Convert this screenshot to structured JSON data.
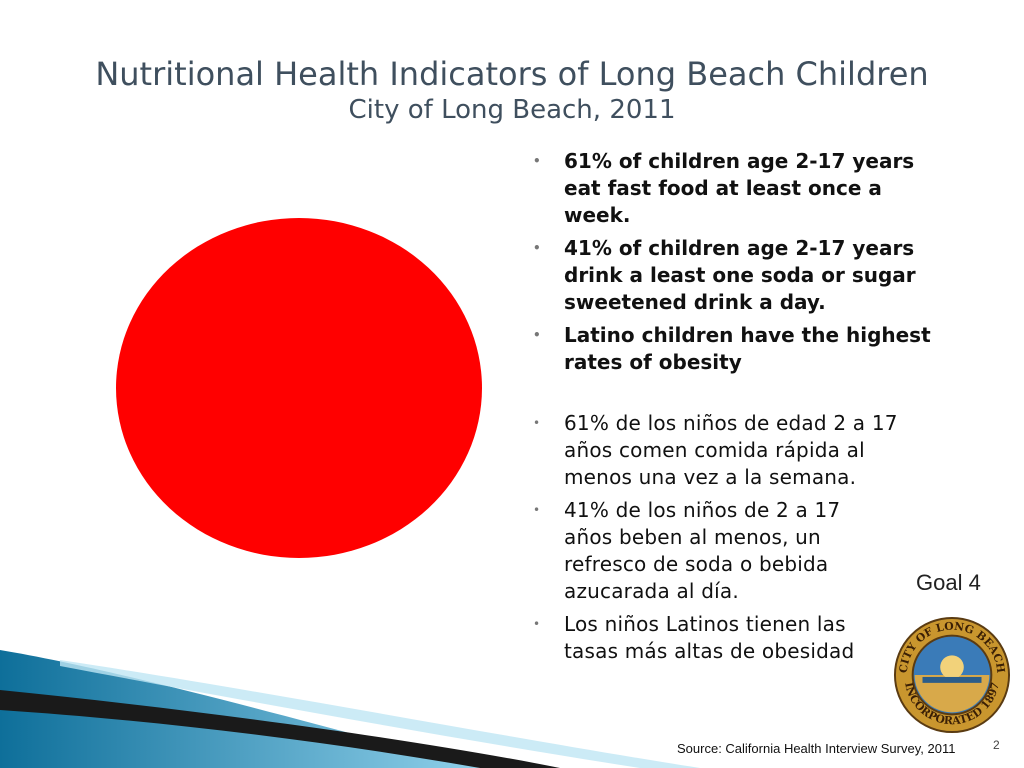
{
  "slide": {
    "title": "Nutritional Health Indicators of Long Beach Children",
    "subtitle": "City of Long Beach, 2011",
    "page_number": "2",
    "goal_label": "Goal 4",
    "source": "Source: California Health Interview Survey, 2011",
    "circle_color": "#ff0000",
    "accent_blue": "#1d8fc0",
    "seal_icon": "city-seal-icon"
  },
  "bullets_en": [
    "61% of children age 2-17 years eat fast food at least once a week.",
    "41% of children age 2-17 years drink a least one soda or sugar sweetened drink a day.",
    "Latino children have the highest rates of obesity"
  ],
  "bullets_es": [
    "61% de los niños de edad 2 a 17 años comen comida rápida al menos una vez a la semana.",
    "41% de los niños de 2 a 17 años beben al menos, un refresco de soda o bebida azucarada al día.",
    "Los niños Latinos tienen las tasas más altas de obesidad"
  ],
  "seal": {
    "text_top": "CITY OF LONG BEACH",
    "text_bottom": "INCORPORATED 1897"
  }
}
